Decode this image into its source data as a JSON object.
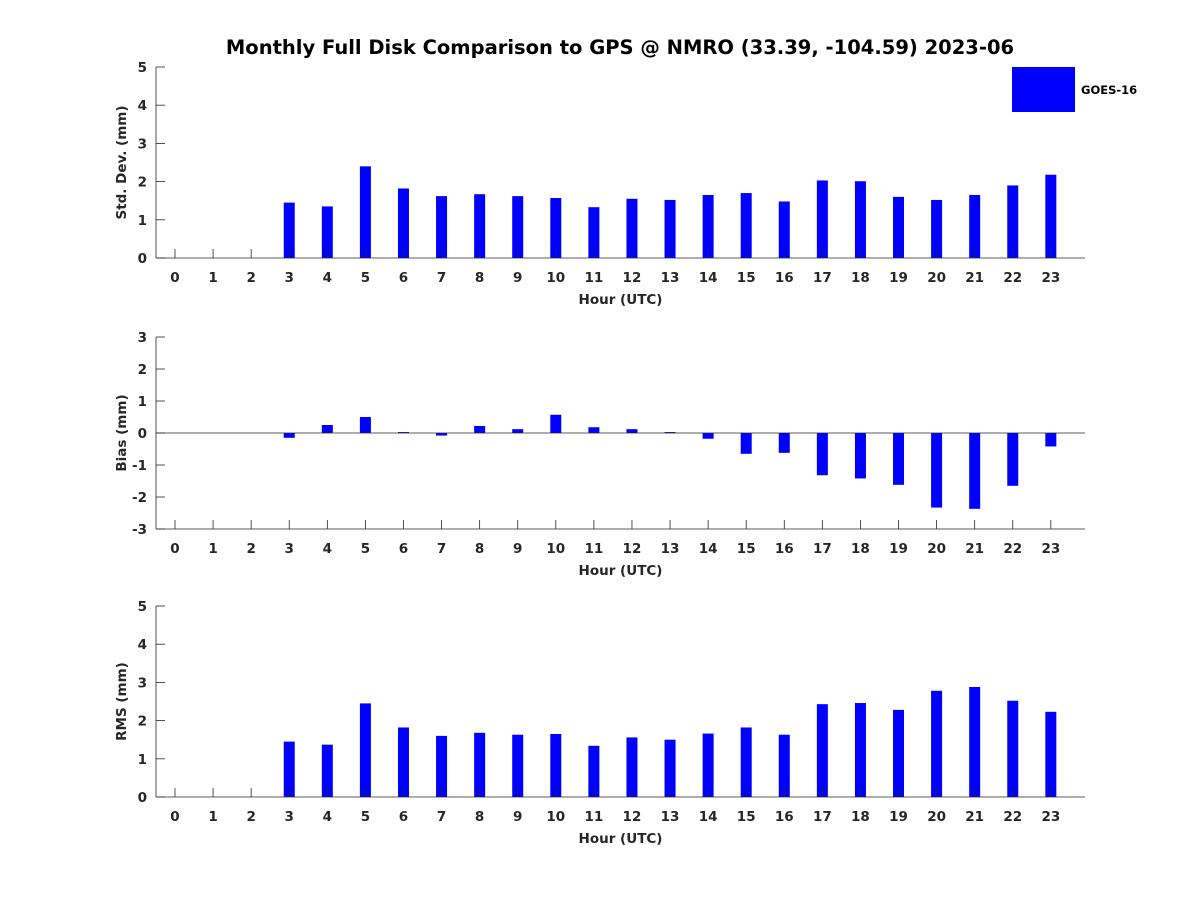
{
  "title": "Monthly Full Disk Comparison to GPS @ NMRO (33.39, -104.59) 2023-06",
  "colors": {
    "bar": "#0000ff",
    "axis": "#262626",
    "background": "#ffffff"
  },
  "legend": {
    "label": "GOES-16",
    "placement": "top-right"
  },
  "chart_data": [
    {
      "type": "bar",
      "series_name": "GOES-16",
      "xlabel": "Hour (UTC)",
      "ylabel": "Std. Dev. (mm)",
      "ylim": [
        0,
        5
      ],
      "yticks": [
        0,
        1,
        2,
        3,
        4,
        5
      ],
      "categories": [
        "0",
        "1",
        "2",
        "3",
        "4",
        "5",
        "6",
        "7",
        "8",
        "9",
        "10",
        "11",
        "12",
        "13",
        "14",
        "15",
        "16",
        "17",
        "18",
        "19",
        "20",
        "21",
        "22",
        "23"
      ],
      "values": [
        null,
        null,
        null,
        1.45,
        1.35,
        2.4,
        1.82,
        1.62,
        1.67,
        1.62,
        1.57,
        1.33,
        1.55,
        1.52,
        1.65,
        1.7,
        1.48,
        2.03,
        2.01,
        1.6,
        1.52,
        1.65,
        1.9,
        2.18
      ]
    },
    {
      "type": "bar",
      "series_name": "GOES-16",
      "xlabel": "Hour (UTC)",
      "ylabel": "Bias (mm)",
      "ylim": [
        -3,
        3
      ],
      "yticks": [
        -3,
        -2,
        -1,
        0,
        1,
        2,
        3
      ],
      "categories": [
        "0",
        "1",
        "2",
        "3",
        "4",
        "5",
        "6",
        "7",
        "8",
        "9",
        "10",
        "11",
        "12",
        "13",
        "14",
        "15",
        "16",
        "17",
        "18",
        "19",
        "20",
        "21",
        "22",
        "23"
      ],
      "values": [
        null,
        null,
        null,
        -0.15,
        0.25,
        0.5,
        0.03,
        -0.08,
        0.22,
        0.12,
        0.57,
        0.18,
        0.12,
        0.03,
        -0.18,
        -0.65,
        -0.62,
        -1.32,
        -1.42,
        -1.62,
        -2.33,
        -2.37,
        -1.65,
        -0.42
      ]
    },
    {
      "type": "bar",
      "series_name": "GOES-16",
      "xlabel": "Hour (UTC)",
      "ylabel": "RMS (mm)",
      "ylim": [
        0,
        5
      ],
      "yticks": [
        0,
        1,
        2,
        3,
        4,
        5
      ],
      "categories": [
        "0",
        "1",
        "2",
        "3",
        "4",
        "5",
        "6",
        "7",
        "8",
        "9",
        "10",
        "11",
        "12",
        "13",
        "14",
        "15",
        "16",
        "17",
        "18",
        "19",
        "20",
        "21",
        "22",
        "23"
      ],
      "values": [
        null,
        null,
        null,
        1.45,
        1.37,
        2.45,
        1.82,
        1.6,
        1.68,
        1.63,
        1.65,
        1.34,
        1.56,
        1.5,
        1.66,
        1.82,
        1.63,
        2.43,
        2.46,
        2.28,
        2.78,
        2.88,
        2.52,
        2.23
      ]
    }
  ]
}
